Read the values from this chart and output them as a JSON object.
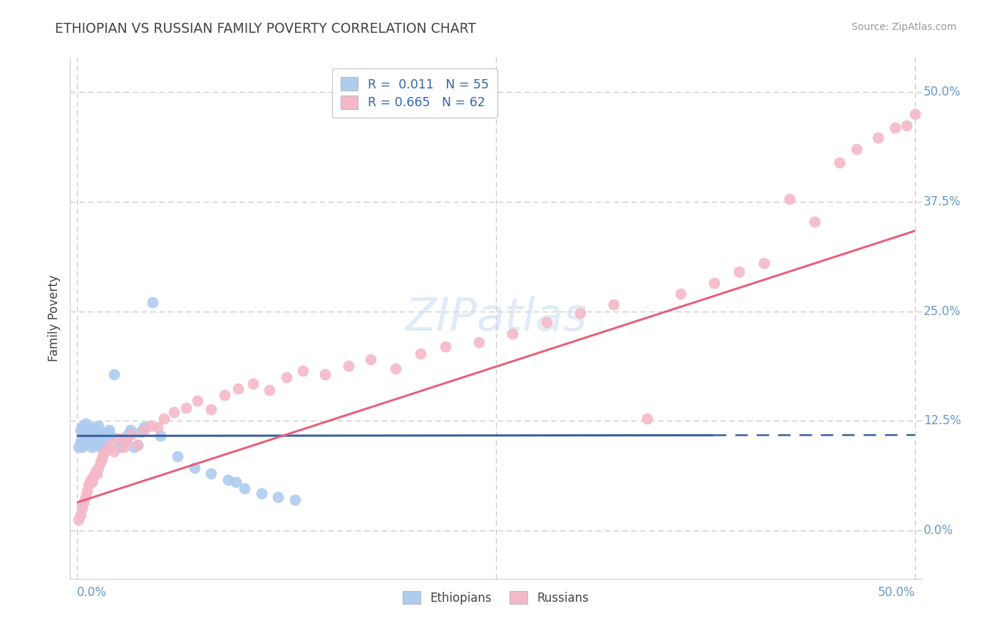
{
  "title": "ETHIOPIAN VS RUSSIAN FAMILY POVERTY CORRELATION CHART",
  "source": "Source: ZipAtlas.com",
  "ylabel": "Family Poverty",
  "ytick_labels": [
    "0.0%",
    "12.5%",
    "25.0%",
    "37.5%",
    "50.0%"
  ],
  "ytick_values": [
    0.0,
    0.125,
    0.25,
    0.375,
    0.5
  ],
  "xlim": [
    -0.004,
    0.504
  ],
  "ylim": [
    -0.055,
    0.54
  ],
  "ethiopian_color": "#aecbf0",
  "russian_color": "#f4b8c8",
  "ethiopian_line_color": "#3a5fa0",
  "russian_line_color": "#e8607a",
  "ethiopian_R": 0.011,
  "ethiopian_N": 55,
  "russian_R": 0.665,
  "russian_N": 62,
  "background_color": "#ffffff",
  "grid_color": "#c8c8c8",
  "tick_label_color": "#6699cc",
  "title_color": "#444444",
  "source_color": "#999999",
  "eth_x": [
    0.001,
    0.002,
    0.002,
    0.003,
    0.003,
    0.003,
    0.004,
    0.004,
    0.004,
    0.005,
    0.005,
    0.005,
    0.006,
    0.006,
    0.007,
    0.007,
    0.008,
    0.008,
    0.009,
    0.009,
    0.01,
    0.01,
    0.011,
    0.012,
    0.012,
    0.013,
    0.013,
    0.014,
    0.015,
    0.016,
    0.017,
    0.018,
    0.019,
    0.02,
    0.022,
    0.024,
    0.026,
    0.028,
    0.03,
    0.032,
    0.034,
    0.036,
    0.038,
    0.04,
    0.045,
    0.05,
    0.06,
    0.07,
    0.08,
    0.09,
    0.095,
    0.1,
    0.11,
    0.12,
    0.13
  ],
  "eth_y": [
    0.095,
    0.102,
    0.115,
    0.108,
    0.118,
    0.095,
    0.11,
    0.105,
    0.12,
    0.098,
    0.112,
    0.122,
    0.105,
    0.115,
    0.108,
    0.118,
    0.1,
    0.112,
    0.095,
    0.105,
    0.11,
    0.118,
    0.098,
    0.108,
    0.115,
    0.102,
    0.12,
    0.095,
    0.105,
    0.11,
    0.098,
    0.112,
    0.115,
    0.108,
    0.178,
    0.105,
    0.095,
    0.102,
    0.108,
    0.115,
    0.095,
    0.098,
    0.112,
    0.118,
    0.26,
    0.108,
    0.085,
    0.072,
    0.065,
    0.058,
    0.055,
    0.048,
    0.042,
    0.038,
    0.035
  ],
  "rus_x": [
    0.001,
    0.002,
    0.003,
    0.004,
    0.005,
    0.006,
    0.007,
    0.008,
    0.009,
    0.01,
    0.011,
    0.012,
    0.013,
    0.014,
    0.015,
    0.016,
    0.018,
    0.02,
    0.022,
    0.025,
    0.028,
    0.03,
    0.033,
    0.036,
    0.04,
    0.044,
    0.048,
    0.052,
    0.058,
    0.065,
    0.072,
    0.08,
    0.088,
    0.096,
    0.105,
    0.115,
    0.125,
    0.135,
    0.148,
    0.162,
    0.175,
    0.19,
    0.205,
    0.22,
    0.24,
    0.26,
    0.28,
    0.3,
    0.32,
    0.34,
    0.36,
    0.38,
    0.395,
    0.41,
    0.425,
    0.44,
    0.455,
    0.465,
    0.478,
    0.488,
    0.495,
    0.5
  ],
  "rus_y": [
    0.012,
    0.018,
    0.025,
    0.032,
    0.038,
    0.045,
    0.052,
    0.058,
    0.055,
    0.062,
    0.068,
    0.065,
    0.072,
    0.078,
    0.082,
    0.088,
    0.092,
    0.098,
    0.09,
    0.105,
    0.095,
    0.102,
    0.11,
    0.098,
    0.115,
    0.12,
    0.118,
    0.128,
    0.135,
    0.14,
    0.148,
    0.138,
    0.155,
    0.162,
    0.168,
    0.16,
    0.175,
    0.182,
    0.178,
    0.188,
    0.195,
    0.185,
    0.202,
    0.21,
    0.215,
    0.225,
    0.238,
    0.248,
    0.258,
    0.128,
    0.27,
    0.282,
    0.295,
    0.305,
    0.378,
    0.352,
    0.42,
    0.435,
    0.448,
    0.46,
    0.462,
    0.475
  ],
  "eth_line_x0": 0.0,
  "eth_line_x_solid_end": 0.38,
  "eth_line_x1": 0.5,
  "eth_line_y_intercept": 0.108,
  "eth_line_slope": 0.002,
  "rus_line_x0": 0.0,
  "rus_line_x1": 0.5,
  "rus_line_y_intercept": 0.032,
  "rus_line_slope": 0.62
}
